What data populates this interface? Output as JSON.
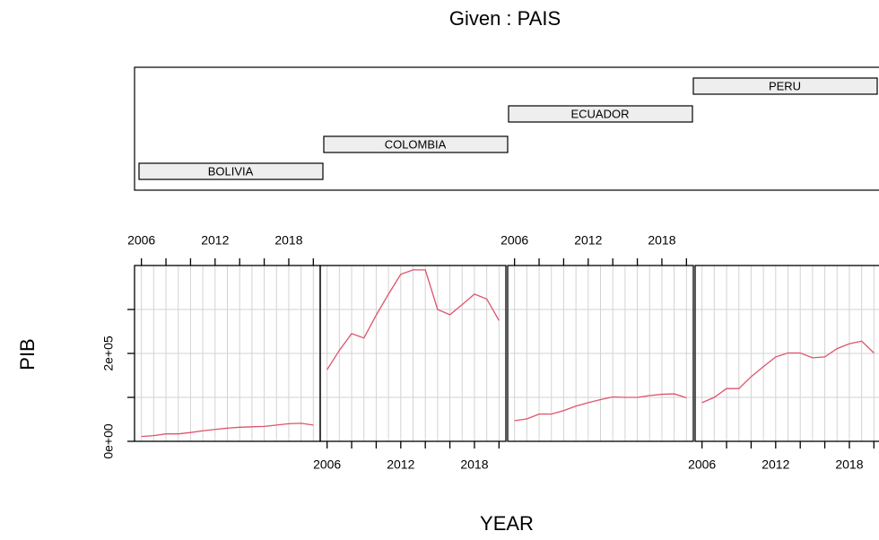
{
  "chart_data": {
    "type": "line",
    "title": "Given : PAIS",
    "x_label": "YEAR",
    "y_label": "PIB",
    "color": "#df536b",
    "x": [
      2006,
      2007,
      2008,
      2009,
      2010,
      2011,
      2012,
      2013,
      2014,
      2015,
      2016,
      2017,
      2018,
      2019,
      2020
    ],
    "series": [
      {
        "name": "BOLIVIA",
        "values": [
          11000,
          13000,
          17000,
          17000,
          20000,
          24000,
          27000,
          30000,
          32000,
          33000,
          34000,
          37000,
          40000,
          41000,
          37000
        ]
      },
      {
        "name": "COLOMBIA",
        "values": [
          163000,
          207000,
          245000,
          235000,
          287000,
          335000,
          380000,
          390000,
          390000,
          300000,
          288000,
          311000,
          335000,
          324000,
          275000
        ]
      },
      {
        "name": "ECUADOR",
        "values": [
          47000,
          51000,
          62000,
          62000,
          70000,
          80000,
          88000,
          95000,
          101000,
          100000,
          100000,
          104000,
          107000,
          108000,
          99000
        ]
      },
      {
        "name": "PERU",
        "values": [
          88000,
          100000,
          120000,
          120000,
          147000,
          170000,
          192000,
          201000,
          201000,
          190000,
          192000,
          211000,
          222000,
          228000,
          201000
        ]
      }
    ],
    "xlim": [
      2005.44,
      2020.56
    ],
    "xticks": [
      2006,
      2012,
      2018
    ],
    "xticks_minor": [
      2008,
      2010,
      2014,
      2016,
      2020
    ],
    "ylim": [
      0,
      400000
    ],
    "yticks": [
      {
        "value": 0,
        "label": "0e+00"
      },
      {
        "value": 200000,
        "label": "2e+05"
      }
    ],
    "yticks_minor": [
      100000,
      300000
    ],
    "grid": true
  }
}
